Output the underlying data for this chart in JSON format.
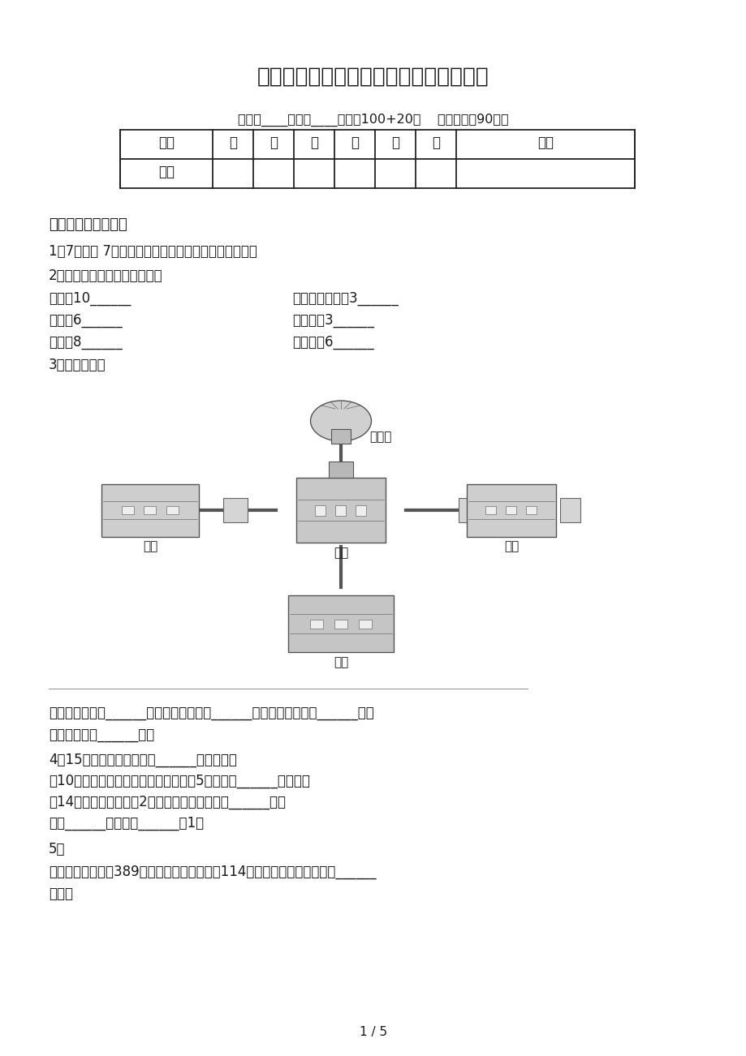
{
  "title": "沪教版小学二年级数学上册期中考试检测",
  "subtitle_info": "班级：____姓名：____满分：100+20分    考试时间：90分钟",
  "table_headers": [
    "题序",
    "一",
    "二",
    "三",
    "四",
    "五",
    "六",
    "总分"
  ],
  "table_row2_label": "得分",
  "section1_title": "一、根据题意填空。",
  "q1": "1．7只青蛙 7张嘴，（＿＿）只眼睛，（＿＿）条腿。",
  "q2_intro": "2．在横线上填上合适的单位。",
  "q2_l1a": "茶杯高10______",
  "q2_l1b": "一本新华字典厚3______",
  "q2_l2a": "指甲宽6______",
  "q2_l2b": "黑板长约3______",
  "q2_l3a": "旗杆高8______",
  "q2_l3b": "课桌高约6______",
  "q3_label": "3．看图填空。",
  "label_tiyuguan": "体育馆",
  "label_yiyuan": "医院",
  "label_xuexiao": "学校",
  "label_youju": "邮局",
  "label_shangchang": "商场",
  "q3_text1": "体育馆在学校的______面，商场在学校的______面，医院在学校的______面，",
  "q3_text2": "邮局在学校的______面。",
  "q4a": "4．15根火柴最多可以拼成______个长方形？",
  "q4b": "把10个玻璃球放在盒子里，每个盒子放5个，需要______个盒子。",
  "q4c": "有14个萝卜，平均放在2个盘子里，每个盘子放______个。",
  "q4d": "最大______比最小的______少1。",
  "q5_label": "5．",
  "q5_text1": "一件上衣的价格是389元，一条裤子的价格是114元，买这一身衣服大约（______",
  "q5_text2": "）元。",
  "page_num": "1 / 5",
  "bg_color": "#ffffff"
}
